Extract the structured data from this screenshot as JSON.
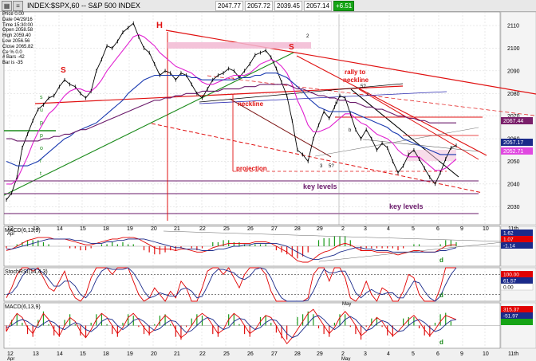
{
  "window": {
    "title": "INDEX:$SPX,60 -- S&P 500 INDEX",
    "icon": "chart-app-icon",
    "quote": {
      "open": "2047.77",
      "high": "2057.72",
      "low": "2039.45",
      "close": "2057.14",
      "change": "+6.51"
    }
  },
  "info": [
    {
      "label": "Price",
      "value": "0.00"
    },
    {
      "label": "Date",
      "value": "04/29/16"
    },
    {
      "label": "Time",
      "value": "15:30:00"
    },
    {
      "label": "Open",
      "value": "2058.58"
    },
    {
      "label": "High",
      "value": "2059.40"
    },
    {
      "label": "Low",
      "value": "2056.56"
    },
    {
      "label": "Close",
      "value": "2065.82"
    },
    {
      "label": "Ce %",
      "value": "0.0"
    },
    {
      "label": "# Bars",
      "value": "-42"
    },
    {
      "label": "Bar is",
      "value": "-35"
    }
  ],
  "chart_data": [
    {
      "type": "line",
      "panel": "price",
      "title": "INDEX:$SPX,60 -- S&P 500 INDEX",
      "x_ticks": [
        "12 Apr",
        "13",
        "14",
        "15",
        "18",
        "19",
        "20",
        "21",
        "22",
        "25",
        "26",
        "27",
        "28",
        "29",
        "2 May",
        "3",
        "4",
        "5",
        "6",
        "9",
        "10",
        "11th"
      ],
      "ylim": [
        2022,
        2116
      ],
      "y_ticks": [
        2030,
        2040,
        2050,
        2060,
        2070,
        2080,
        2090,
        2100,
        2110
      ],
      "price_tags": [
        {
          "value": "2067.44",
          "color": "#7a1f6a"
        },
        {
          "value": "2057.17",
          "color": "#1a2a8a"
        },
        {
          "value": "2052.71",
          "color": "#e048e0"
        }
      ],
      "annotations": [
        "S",
        "H",
        "S",
        "neckline",
        "rally to neckline",
        "projection",
        "key levels",
        "key levels",
        "2",
        "3",
        "5?",
        "a",
        "b",
        "c",
        "5?",
        "s",
        "u",
        "p",
        "p",
        "o",
        "r",
        "t"
      ],
      "x_minor_label": "Apr",
      "series": [
        {
          "name": "",
          "color": "#000000",
          "values": [
            2033,
            2036,
            2043,
            2056,
            2062,
            2068,
            2073,
            2075,
            2078,
            2079,
            2083,
            2086,
            2084,
            2083,
            2080,
            2078,
            2081,
            2090,
            2095,
            2101,
            2100,
            2103,
            2107,
            2109,
            2111,
            2105,
            2100,
            2098,
            2093,
            2088,
            2090,
            2089,
            2086,
            2089,
            2088,
            2084,
            2080,
            2078,
            2082,
            2086,
            2088,
            2089,
            2091,
            2090,
            2087,
            2090,
            2093,
            2097,
            2098,
            2099,
            2096,
            2091,
            2085,
            2079,
            2068,
            2055,
            2053,
            2050,
            2060,
            2066,
            2072,
            2069,
            2074,
            2079,
            2078,
            2071,
            2064,
            2060,
            2064,
            2060,
            2055,
            2058,
            2056,
            2050,
            2045,
            2048,
            2053,
            2055,
            2051,
            2047,
            2043,
            2040,
            2045,
            2051,
            2056,
            2057
          ]
        },
        {
          "name": "",
          "color": "#e020d0",
          "values": [
            2040,
            2040,
            2042,
            2047,
            2052,
            2058,
            2063,
            2067,
            2071,
            2073,
            2076,
            2079,
            2081,
            2082,
            2082,
            2081,
            2081,
            2083,
            2086,
            2090,
            2093,
            2096,
            2099,
            2102,
            2105,
            2106,
            2105,
            2103,
            2101,
            2098,
            2096,
            2094,
            2092,
            2091,
            2090,
            2089,
            2087,
            2085,
            2084,
            2084,
            2085,
            2086,
            2087,
            2088,
            2088,
            2088,
            2089,
            2091,
            2093,
            2094,
            2095,
            2094,
            2092,
            2089,
            2084,
            2077,
            2072,
            2066,
            2063,
            2063,
            2064,
            2065,
            2067,
            2069,
            2071,
            2071,
            2069,
            2067,
            2066,
            2064,
            2062,
            2061,
            2060,
            2058,
            2055,
            2053,
            2052,
            2052,
            2052,
            2050,
            2048,
            2046,
            2046,
            2047,
            2049,
            2051
          ]
        },
        {
          "name": "",
          "color": "#1a3ab0",
          "values": [
            2050,
            2049,
            2048,
            2048,
            2048,
            2049,
            2050,
            2052,
            2054,
            2056,
            2058,
            2060,
            2061,
            2063,
            2064,
            2065,
            2066,
            2067,
            2069,
            2071,
            2073,
            2075,
            2077,
            2080,
            2082,
            2084,
            2086,
            2087,
            2088,
            2088,
            2088,
            2088,
            2088,
            2088,
            2088,
            2087,
            2087,
            2086,
            2086,
            2086,
            2086,
            2086,
            2086,
            2086,
            2087,
            2087,
            2087,
            2088,
            2088,
            2089,
            2089,
            2089,
            2088,
            2087,
            2085,
            2083,
            2081,
            2078,
            2076,
            2074,
            2073,
            2072,
            2072,
            2072,
            2072,
            2072,
            2071,
            2070,
            2069,
            2068,
            2067,
            2066,
            2065,
            2063,
            2062,
            2060,
            2059,
            2058,
            2057,
            2056,
            2055,
            2054,
            2053,
            2053,
            2053,
            2053
          ]
        },
        {
          "name": "",
          "color": "#6a1a6a",
          "values": [
            2060,
            2060,
            2059,
            2059,
            2059,
            2059,
            2059,
            2060,
            2060,
            2061,
            2061,
            2062,
            2062,
            2063,
            2064,
            2064,
            2065,
            2066,
            2067,
            2068,
            2069,
            2070,
            2071,
            2072,
            2073,
            2074,
            2075,
            2076,
            2077,
            2077,
            2078,
            2078,
            2079,
            2079,
            2080,
            2080,
            2080,
            2081,
            2081,
            2081,
            2081,
            2082,
            2082,
            2082,
            2082,
            2083,
            2083,
            2083,
            2084,
            2084,
            2084,
            2084,
            2084,
            2084,
            2083,
            2082,
            2082,
            2081,
            2080,
            2079,
            2079,
            2078,
            2078,
            2077,
            2077,
            2076,
            2076,
            2075,
            2074,
            2074,
            2073,
            2073,
            2072,
            2071,
            2070,
            2070,
            2069,
            2069,
            2068,
            2068,
            2067,
            2067,
            2067,
            2067,
            2067,
            2067
          ]
        }
      ]
    },
    {
      "type": "bar",
      "panel": "macd",
      "title": "MACD(6,13,9)",
      "price_tags": [
        {
          "value": "1.62",
          "color": "#1a2a8a"
        },
        {
          "value": "1.07",
          "color": "#e00000"
        },
        {
          "value": "-1.14",
          "color": "#1a2a8a"
        }
      ],
      "annotations": [
        "d"
      ],
      "series": [
        {
          "name": "MACD",
          "color": "#e00000",
          "values": [
            -3,
            -2,
            0,
            2,
            4,
            5,
            6,
            6,
            6,
            5,
            5,
            5,
            4,
            3,
            2,
            1,
            1,
            2,
            3,
            4,
            5,
            5,
            6,
            6,
            6,
            5,
            3,
            1,
            -1,
            -2,
            -2,
            -2,
            -3,
            -2,
            -2,
            -3,
            -4,
            -4,
            -3,
            -1,
            0,
            1,
            2,
            2,
            2,
            2,
            2,
            3,
            3,
            3,
            2,
            0,
            -2,
            -4,
            -7,
            -10,
            -11,
            -11,
            -9,
            -6,
            -4,
            -3,
            -1,
            1,
            2,
            1,
            -1,
            -3,
            -3,
            -3,
            -4,
            -4,
            -4,
            -5,
            -6,
            -5,
            -4,
            -3,
            -3,
            -4,
            -4,
            -4,
            -2,
            0,
            1,
            1
          ]
        },
        {
          "name": "Signal",
          "color": "#1a2a8a",
          "values": [
            -2,
            -2,
            -1,
            0,
            1,
            2,
            3,
            4,
            5,
            5,
            5,
            5,
            5,
            4,
            4,
            3,
            2,
            2,
            2,
            3,
            3,
            4,
            4,
            5,
            5,
            5,
            5,
            4,
            3,
            2,
            1,
            0,
            -1,
            -1,
            -2,
            -2,
            -2,
            -3,
            -3,
            -3,
            -2,
            -2,
            -1,
            0,
            0,
            1,
            1,
            2,
            2,
            2,
            2,
            2,
            1,
            0,
            -2,
            -4,
            -6,
            -8,
            -9,
            -9,
            -8,
            -7,
            -6,
            -4,
            -3,
            -2,
            -1,
            -1,
            -2,
            -2,
            -3,
            -3,
            -3,
            -4,
            -4,
            -4,
            -4,
            -4,
            -4,
            -4,
            -4,
            -4,
            -3,
            -3,
            -2,
            -1
          ]
        }
      ]
    },
    {
      "type": "line",
      "panel": "stochrsi",
      "title": "StochRSI(14,4,3)",
      "ylim": [
        0,
        100
      ],
      "price_tags": [
        {
          "value": "100.00",
          "color": "#e00000"
        },
        {
          "value": "61.57",
          "color": "#1a2a8a"
        },
        {
          "value": "0.00",
          "color": "#ffffff"
        }
      ],
      "annotations": [
        "d"
      ],
      "series": [
        {
          "name": "",
          "color": "#e00000",
          "values": [
            10,
            40,
            80,
            100,
            100,
            90,
            100,
            70,
            40,
            30,
            60,
            90,
            40,
            10,
            0,
            20,
            70,
            100,
            100,
            100,
            80,
            100,
            100,
            100,
            60,
            20,
            0,
            10,
            40,
            20,
            0,
            30,
            10,
            60,
            40,
            0,
            0,
            40,
            90,
            100,
            100,
            80,
            100,
            70,
            40,
            80,
            100,
            100,
            100,
            80,
            30,
            0,
            0,
            0,
            0,
            0,
            0,
            10,
            80,
            100,
            100,
            60,
            100,
            100,
            70,
            10,
            0,
            20,
            60,
            20,
            0,
            40,
            30,
            0,
            0,
            30,
            80,
            70,
            20,
            0,
            0,
            0,
            40,
            100,
            100,
            100
          ]
        },
        {
          "name": "",
          "color": "#1a2a8a",
          "values": [
            20,
            25,
            45,
            75,
            95,
            97,
            95,
            85,
            65,
            45,
            45,
            60,
            60,
            45,
            20,
            10,
            30,
            65,
            90,
            100,
            95,
            95,
            95,
            100,
            85,
            60,
            30,
            10,
            15,
            25,
            20,
            15,
            15,
            35,
            40,
            30,
            10,
            15,
            45,
            80,
            95,
            95,
            90,
            85,
            70,
            65,
            75,
            95,
            100,
            95,
            70,
            35,
            10,
            0,
            0,
            0,
            0,
            3,
            30,
            65,
            95,
            85,
            85,
            90,
            90,
            60,
            25,
            10,
            25,
            35,
            25,
            20,
            25,
            25,
            10,
            10,
            35,
            60,
            55,
            30,
            10,
            0,
            15,
            50,
            80,
            100
          ]
        }
      ]
    },
    {
      "type": "bar",
      "panel": "macd2",
      "title": "MACD(6,13,9)",
      "price_tags": [
        {
          "value": "315.37",
          "color": "#e00000"
        },
        {
          "value": "-51.97",
          "color": "#1a2a8a"
        },
        {
          "value": "",
          "color": "#16a416"
        }
      ],
      "annotations": [
        "d"
      ],
      "series": [
        {
          "name": "MACD",
          "color": "#e00000",
          "values": [
            -30,
            20,
            60,
            40,
            -10,
            -40,
            10,
            60,
            30,
            -20,
            -50,
            0,
            40,
            20,
            -30,
            -60,
            -20,
            30,
            60,
            40,
            0,
            -40,
            -10,
            40,
            60,
            30,
            -10,
            -40,
            -20,
            20,
            50,
            30,
            -20,
            -60,
            -40,
            0,
            40,
            60,
            40,
            0,
            -40,
            -20,
            30,
            60,
            40,
            0,
            -40,
            -20,
            20,
            50,
            40,
            0,
            -50,
            -90,
            -60,
            -20,
            20,
            60,
            80,
            40,
            0,
            -40,
            -10,
            40,
            70,
            40,
            0,
            -50,
            -30,
            10,
            40,
            20,
            -20,
            -50,
            -30,
            0,
            30,
            50,
            20,
            -20,
            -50,
            -20,
            20,
            50,
            40,
            30
          ]
        },
        {
          "name": "Signal",
          "color": "#1a2a8a",
          "values": [
            -10,
            0,
            20,
            30,
            20,
            0,
            -10,
            10,
            25,
            15,
            -10,
            -20,
            0,
            15,
            5,
            -20,
            -30,
            -10,
            20,
            35,
            30,
            0,
            -20,
            0,
            25,
            35,
            20,
            -5,
            -25,
            -15,
            10,
            25,
            20,
            -10,
            -35,
            -25,
            0,
            25,
            40,
            30,
            0,
            -20,
            -10,
            20,
            35,
            30,
            0,
            -20,
            -10,
            15,
            30,
            25,
            -5,
            -40,
            -60,
            -50,
            -20,
            10,
            40,
            50,
            30,
            0,
            -20,
            0,
            30,
            45,
            30,
            0,
            -25,
            -15,
            10,
            25,
            15,
            -10,
            -30,
            -25,
            0,
            20,
            30,
            15,
            -10,
            -30,
            -20,
            5,
            25,
            30
          ]
        }
      ]
    }
  ]
}
